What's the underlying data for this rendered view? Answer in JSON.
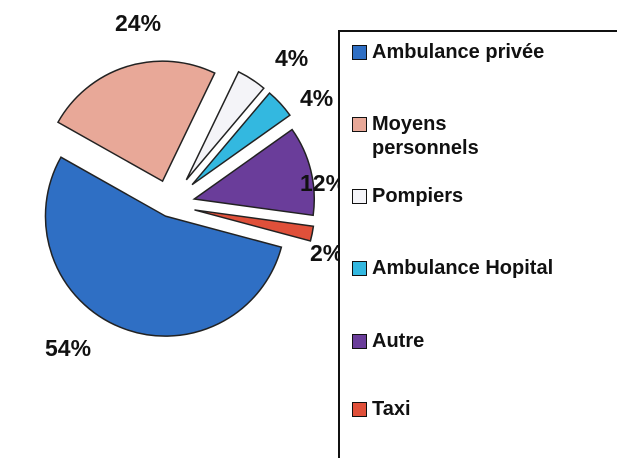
{
  "chart_data": {
    "type": "pie",
    "categories": [
      "Ambulance privée",
      "Moyens personnels",
      "Pompiers",
      "Ambulance Hopital",
      "Autre",
      "Taxi"
    ],
    "values": [
      54,
      24,
      4,
      4,
      12,
      2
    ],
    "value_labels": [
      "54%",
      "24%",
      "4%",
      "4%",
      "12%",
      "2%"
    ],
    "colors": [
      "#2f6fc4",
      "#e8a898",
      "#f4f4f8",
      "#33b8e0",
      "#6a3d9a",
      "#e0503a"
    ],
    "legend": "right"
  }
}
